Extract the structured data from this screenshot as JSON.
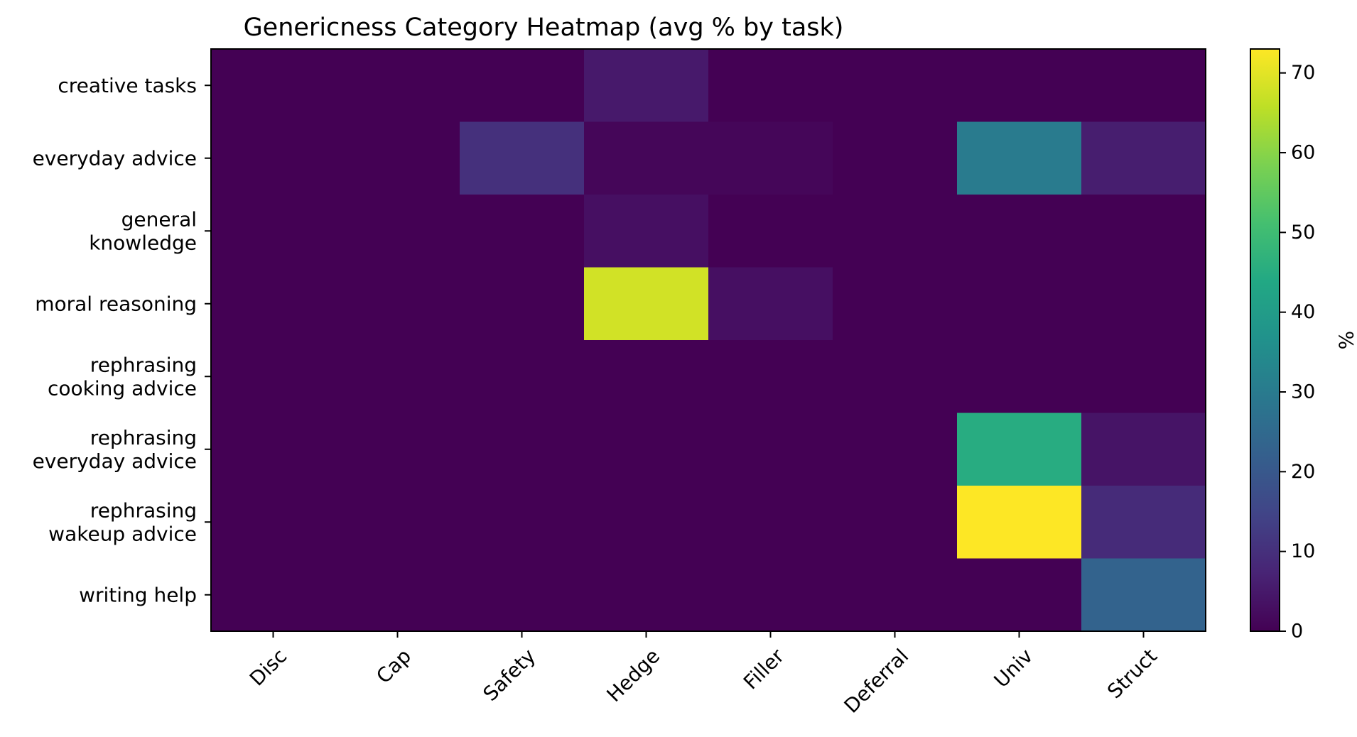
{
  "chart_data": {
    "type": "heatmap",
    "title": "Genericness Category Heatmap (avg % by task)",
    "xlabel": "",
    "ylabel": "",
    "x_categories": [
      "Disc",
      "Cap",
      "Safety",
      "Hedge",
      "Filler",
      "Deferral",
      "Univ",
      "Struct"
    ],
    "y_categories": [
      [
        "creative tasks"
      ],
      [
        "everyday advice"
      ],
      [
        "general",
        "knowledge"
      ],
      [
        "moral reasoning"
      ],
      [
        "rephrasing",
        "cooking advice"
      ],
      [
        "rephrasing",
        "everyday advice"
      ],
      [
        "rephrasing",
        "wakeup advice"
      ],
      [
        "writing help"
      ]
    ],
    "values": [
      [
        0,
        0,
        0,
        5,
        0,
        0,
        0,
        0
      ],
      [
        0,
        0,
        10,
        1,
        1,
        0,
        30,
        6
      ],
      [
        0,
        0,
        0,
        3,
        0,
        0,
        0,
        0
      ],
      [
        0,
        0,
        0,
        68,
        3,
        0,
        0,
        0
      ],
      [
        0,
        0,
        0,
        0,
        0,
        0,
        0,
        0
      ],
      [
        0,
        0,
        0,
        0,
        0,
        0,
        45,
        4
      ],
      [
        0,
        0,
        0,
        0,
        0,
        0,
        73,
        9
      ],
      [
        0,
        0,
        0,
        0,
        0,
        0,
        0,
        23
      ]
    ],
    "colorbar": {
      "label": "%",
      "range": [
        0,
        73
      ],
      "ticks": [
        "0",
        "10",
        "20",
        "30",
        "40",
        "50",
        "60",
        "70"
      ],
      "colormap": "viridis"
    },
    "grid": false
  }
}
